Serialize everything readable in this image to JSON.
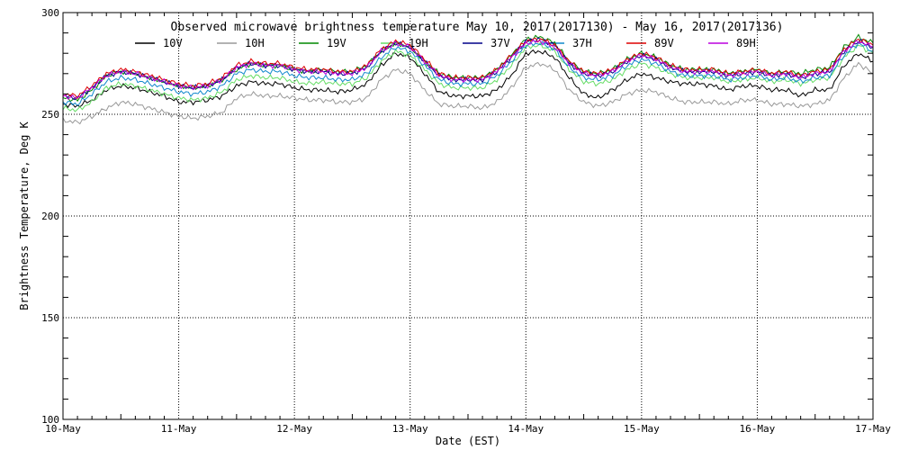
{
  "chart_data": {
    "type": "line",
    "title": "Observed microwave brightness temperature May 10, 2017(2017130) - May 16, 2017(2017136)",
    "xlabel": "Date (EST)",
    "ylabel": "Brightness Temperature, Deg K",
    "xlim": [
      "2017-05-10",
      "2017-05-17"
    ],
    "ylim": [
      100,
      300
    ],
    "x_ticks": [
      "10-May",
      "11-May",
      "12-May",
      "13-May",
      "14-May",
      "15-May",
      "16-May",
      "17-May"
    ],
    "y_ticks": [
      100,
      150,
      200,
      250,
      300
    ],
    "grid": true,
    "legend_position": "top",
    "x": [
      "2017-05-10 00:00",
      "2017-05-10 03:00",
      "2017-05-10 06:00",
      "2017-05-10 09:00",
      "2017-05-10 12:00",
      "2017-05-10 15:00",
      "2017-05-10 18:00",
      "2017-05-10 21:00",
      "2017-05-11 00:00",
      "2017-05-11 03:00",
      "2017-05-11 06:00",
      "2017-05-11 09:00",
      "2017-05-11 12:00",
      "2017-05-11 15:00",
      "2017-05-11 18:00",
      "2017-05-11 21:00",
      "2017-05-12 00:00",
      "2017-05-12 03:00",
      "2017-05-12 06:00",
      "2017-05-12 09:00",
      "2017-05-12 12:00",
      "2017-05-12 15:00",
      "2017-05-12 18:00",
      "2017-05-12 21:00",
      "2017-05-13 00:00",
      "2017-05-13 03:00",
      "2017-05-13 06:00",
      "2017-05-13 09:00",
      "2017-05-13 12:00",
      "2017-05-13 15:00",
      "2017-05-13 18:00",
      "2017-05-13 21:00",
      "2017-05-14 00:00",
      "2017-05-14 03:00",
      "2017-05-14 06:00",
      "2017-05-14 09:00",
      "2017-05-14 12:00",
      "2017-05-14 15:00",
      "2017-05-14 18:00",
      "2017-05-14 21:00",
      "2017-05-15 00:00",
      "2017-05-15 03:00",
      "2017-05-15 06:00",
      "2017-05-15 09:00",
      "2017-05-15 12:00",
      "2017-05-15 15:00",
      "2017-05-15 18:00",
      "2017-05-15 21:00",
      "2017-05-16 00:00",
      "2017-05-16 03:00",
      "2017-05-16 06:00",
      "2017-05-16 09:00",
      "2017-05-16 12:00",
      "2017-05-16 15:00",
      "2017-05-16 18:00",
      "2017-05-16 21:00",
      "2017-05-17 00:00"
    ],
    "series": [
      {
        "name": "10V",
        "color": "#000000",
        "values": [
          255,
          254,
          257,
          262,
          264,
          263,
          261,
          259,
          256,
          256,
          257,
          259,
          264,
          266,
          265,
          265,
          263,
          262,
          262,
          261,
          262,
          265,
          274,
          280,
          278,
          270,
          261,
          259,
          259,
          259,
          262,
          269,
          280,
          281,
          278,
          268,
          260,
          258,
          262,
          267,
          270,
          268,
          266,
          265,
          265,
          264,
          262,
          264,
          264,
          262,
          262,
          259,
          262,
          262,
          274,
          280,
          276
        ]
      },
      {
        "name": "10H",
        "color": "#999999",
        "values": [
          247,
          246,
          249,
          253,
          256,
          255,
          253,
          251,
          249,
          248,
          249,
          251,
          258,
          260,
          259,
          259,
          258,
          257,
          257,
          256,
          256,
          258,
          267,
          272,
          270,
          262,
          255,
          254,
          254,
          253,
          256,
          263,
          273,
          275,
          272,
          262,
          256,
          254,
          256,
          260,
          262,
          261,
          258,
          256,
          256,
          256,
          255,
          257,
          257,
          255,
          255,
          254,
          255,
          257,
          268,
          275,
          270
        ]
      },
      {
        "name": "19V",
        "color": "#008800",
        "values": [
          258,
          257,
          262,
          269,
          271,
          270,
          268,
          266,
          264,
          263,
          264,
          267,
          272,
          275,
          274,
          274,
          272,
          271,
          272,
          271,
          271,
          274,
          281,
          285,
          283,
          276,
          270,
          268,
          268,
          268,
          272,
          279,
          287,
          288,
          285,
          276,
          271,
          270,
          272,
          277,
          280,
          278,
          274,
          272,
          272,
          272,
          270,
          271,
          272,
          270,
          271,
          270,
          272,
          273,
          283,
          288,
          285
        ]
      },
      {
        "name": "19H",
        "color": "#66dd66",
        "values": [
          253,
          252,
          256,
          263,
          265,
          264,
          262,
          260,
          258,
          257,
          258,
          261,
          267,
          269,
          268,
          268,
          266,
          265,
          266,
          265,
          265,
          268,
          276,
          281,
          279,
          272,
          265,
          263,
          263,
          263,
          267,
          274,
          283,
          284,
          281,
          272,
          266,
          265,
          267,
          272,
          275,
          273,
          270,
          268,
          268,
          268,
          266,
          267,
          268,
          266,
          267,
          265,
          267,
          268,
          278,
          284,
          280
        ]
      },
      {
        "name": "37V",
        "color": "#000088",
        "values": [
          259,
          258,
          263,
          269,
          271,
          270,
          268,
          266,
          264,
          263,
          264,
          267,
          273,
          275,
          274,
          274,
          272,
          271,
          271,
          270,
          270,
          273,
          281,
          285,
          283,
          276,
          269,
          267,
          267,
          267,
          271,
          278,
          286,
          287,
          284,
          275,
          270,
          269,
          271,
          276,
          279,
          277,
          273,
          271,
          271,
          271,
          269,
          270,
          271,
          269,
          270,
          268,
          270,
          271,
          281,
          286,
          283
        ]
      },
      {
        "name": "37H",
        "color": "#1188cc",
        "values": [
          256,
          255,
          260,
          266,
          268,
          267,
          265,
          263,
          261,
          260,
          261,
          264,
          270,
          272,
          271,
          271,
          269,
          268,
          268,
          267,
          267,
          270,
          278,
          283,
          281,
          274,
          267,
          265,
          265,
          265,
          269,
          276,
          284,
          285,
          282,
          273,
          268,
          267,
          269,
          274,
          277,
          275,
          271,
          269,
          269,
          269,
          267,
          268,
          269,
          267,
          268,
          266,
          268,
          269,
          279,
          285,
          281
        ]
      },
      {
        "name": "89V",
        "color": "#dd0000",
        "values": [
          260,
          259,
          264,
          270,
          272,
          271,
          269,
          267,
          265,
          264,
          265,
          268,
          274,
          276,
          275,
          275,
          273,
          272,
          272,
          271,
          271,
          274,
          282,
          286,
          284,
          277,
          270,
          268,
          268,
          268,
          272,
          279,
          286,
          287,
          284,
          276,
          271,
          270,
          272,
          277,
          280,
          278,
          274,
          272,
          272,
          272,
          270,
          271,
          272,
          270,
          271,
          269,
          271,
          272,
          282,
          287,
          284
        ]
      },
      {
        "name": "89H",
        "color": "#bb00dd",
        "values": [
          259,
          258,
          263,
          269,
          271,
          270,
          268,
          266,
          264,
          263,
          264,
          267,
          273,
          275,
          274,
          274,
          272,
          271,
          271,
          270,
          270,
          273,
          281,
          285,
          283,
          276,
          269,
          267,
          267,
          267,
          271,
          278,
          285,
          286,
          283,
          275,
          270,
          269,
          271,
          276,
          279,
          277,
          273,
          271,
          271,
          271,
          269,
          270,
          271,
          269,
          270,
          268,
          270,
          271,
          281,
          286,
          283
        ]
      }
    ]
  }
}
